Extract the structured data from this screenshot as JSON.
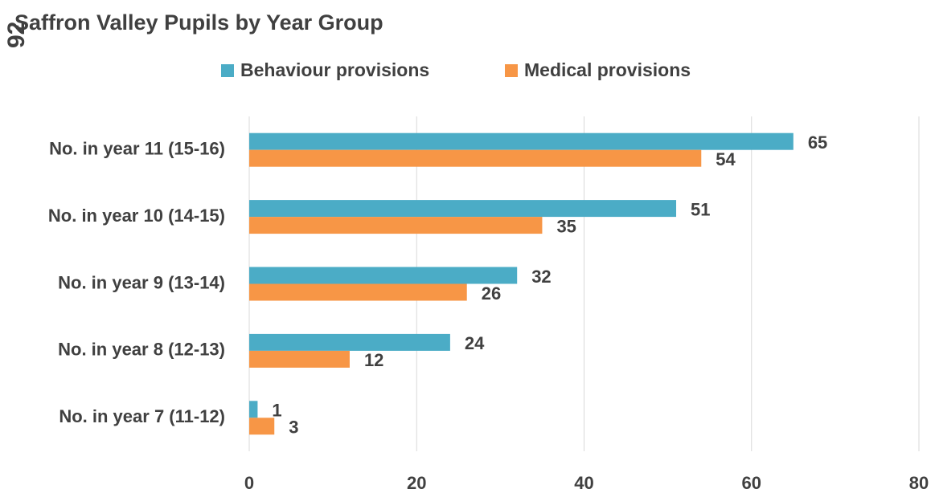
{
  "chart_data": {
    "type": "bar",
    "orientation": "horizontal",
    "title": "Saffron Valley Pupils by Year Group",
    "annotations": [
      "92"
    ],
    "categories": [
      "No. in year 11 (15-16)",
      "No. in year 10 (14-15)",
      "No. in year 9 (13-14)",
      "No. in year 8 (12-13)",
      "No. in year 7 (11-12)"
    ],
    "series": [
      {
        "name": "Behaviour provisions",
        "color": "#4bacc6",
        "values": [
          65,
          51,
          32,
          24,
          1
        ]
      },
      {
        "name": "Medical provisions",
        "color": "#f79646",
        "values": [
          54,
          35,
          26,
          12,
          3
        ]
      }
    ],
    "xlim": [
      0,
      80
    ],
    "xticks": [
      0,
      20,
      40,
      60,
      80
    ],
    "grid": true,
    "legend": "top"
  }
}
